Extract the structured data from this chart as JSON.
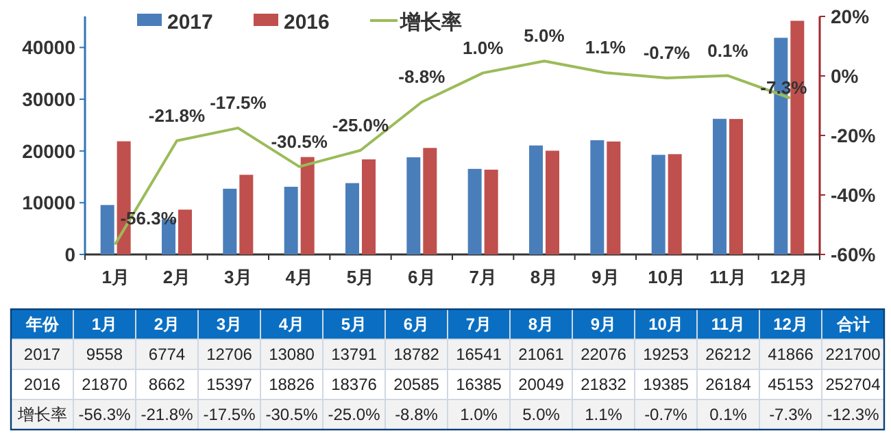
{
  "chart_data": {
    "type": "bar",
    "categories": [
      "1月",
      "2月",
      "3月",
      "4月",
      "5月",
      "6月",
      "7月",
      "8月",
      "9月",
      "10月",
      "11月",
      "12月"
    ],
    "series": [
      {
        "name": "2017",
        "color": "#4a7ebb",
        "values": [
          9558,
          6774,
          12706,
          13080,
          13791,
          18782,
          16541,
          21061,
          22076,
          19253,
          26212,
          41866
        ]
      },
      {
        "name": "2016",
        "color": "#c0504d",
        "values": [
          21870,
          8662,
          15397,
          18826,
          18376,
          20585,
          16385,
          20049,
          21832,
          19385,
          26184,
          45153
        ]
      },
      {
        "name": "增长率",
        "type": "line",
        "axis": "y2",
        "color": "#9bbb59",
        "values": [
          -56.3,
          -21.8,
          -17.5,
          -30.5,
          -25.0,
          -8.8,
          1.0,
          5.0,
          1.1,
          -0.7,
          0.1,
          -7.3
        ],
        "value_labels": [
          "-56.3%",
          "-21.8%",
          "-17.5%",
          "-30.5%",
          "-25.0%",
          "-8.8%",
          "1.0%",
          "5.0%",
          "1.1%",
          "-0.7%",
          "0.1%",
          "-7.3%"
        ]
      }
    ],
    "ylim": [
      0,
      46000
    ],
    "yticks": [
      0,
      10000,
      20000,
      30000,
      40000
    ],
    "y2lim": [
      -60,
      20
    ],
    "y2ticks": [
      {
        "value": -60,
        "label": "-60%"
      },
      {
        "value": -40,
        "label": "-40%"
      },
      {
        "value": -20,
        "label": "-20%"
      },
      {
        "value": 0,
        "label": "0%"
      },
      {
        "value": 20,
        "label": "20%"
      }
    ],
    "data_labels": true,
    "legend": "top",
    "marker": "none",
    "line_style": "solid",
    "annotations": [
      "年份",
      "合计",
      "221700",
      "252704",
      "-12.3%"
    ]
  }
}
